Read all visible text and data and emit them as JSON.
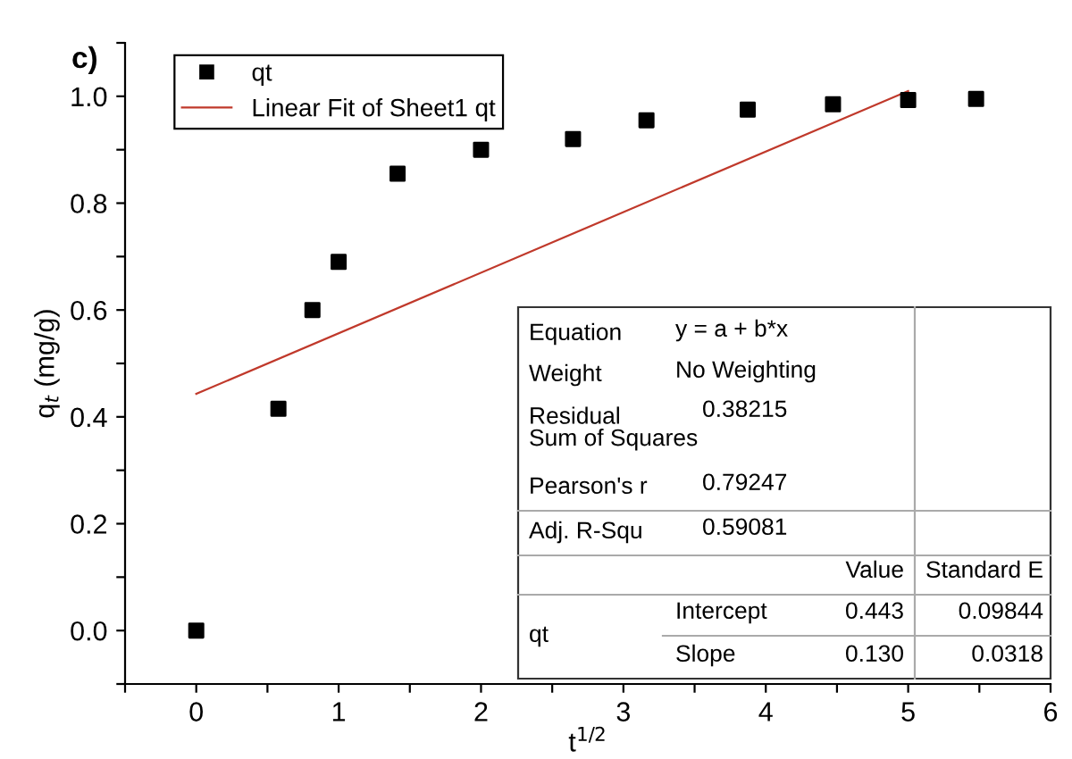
{
  "chart_data": {
    "type": "scatter",
    "title": "c)",
    "xlabel": "t$^{1/2}$",
    "ylabel": "q$_{t}$ (mg/g)",
    "xlim": [
      -0.5,
      6
    ],
    "ylim": [
      -0.1,
      1.1
    ],
    "xticks": [
      {
        "value": -0.5,
        "label": null
      },
      0,
      {
        "value": 0.5,
        "label": null
      },
      1,
      {
        "value": 1.5,
        "label": null
      },
      2,
      {
        "value": 2.5,
        "label": null
      },
      3,
      {
        "value": 3.5,
        "label": null
      },
      4,
      {
        "value": 4.5,
        "label": null
      },
      5,
      {
        "value": 5.5,
        "label": null
      },
      6
    ],
    "yticks": [
      {
        "value": -0.1,
        "label": null
      },
      {
        "value": 0.0,
        "label": "0.0"
      },
      {
        "value": 0.1,
        "label": null
      },
      0.2,
      {
        "value": 0.3,
        "label": null
      },
      0.4,
      {
        "value": 0.5,
        "label": null
      },
      0.6,
      {
        "value": 0.7,
        "label": null
      },
      0.8,
      {
        "value": 0.9,
        "label": null
      },
      {
        "value": 1.0,
        "label": "1.0"
      },
      {
        "value": 1.1,
        "label": null
      }
    ],
    "grid": false,
    "legend": "top left",
    "marker": "square",
    "series": [
      {
        "name": "qt",
        "color": "#000000",
        "x": [
          0,
          0.577,
          0.816,
          1.0,
          1.414,
          2.0,
          2.646,
          3.162,
          3.873,
          4.472,
          5.0,
          5.477
        ],
        "values": [
          0.0,
          0.415,
          0.6,
          0.69,
          0.855,
          0.9,
          0.92,
          0.955,
          0.975,
          0.985,
          0.993,
          0.995
        ]
      },
      {
        "name": "Linear Fit of Sheet1 qt",
        "type": "line",
        "color": "#c0392b",
        "marker": "none",
        "line_style": "solid",
        "x": [
          0,
          5.0
        ],
        "values": [
          0.443,
          1.01
        ]
      }
    ],
    "annotations": [
      "Equation",
      "y = a + b*x",
      "Weight",
      "No Weighting",
      "Residual Sum of Squares",
      "0.38215",
      "Pearson's r",
      "0.79247",
      "Adj. R-Squ",
      "0.59081",
      "Value",
      "Standard E",
      "qt",
      "Intercept",
      "0.443",
      "0.09844",
      "Slope",
      "0.130",
      "0.0318"
    ]
  }
}
